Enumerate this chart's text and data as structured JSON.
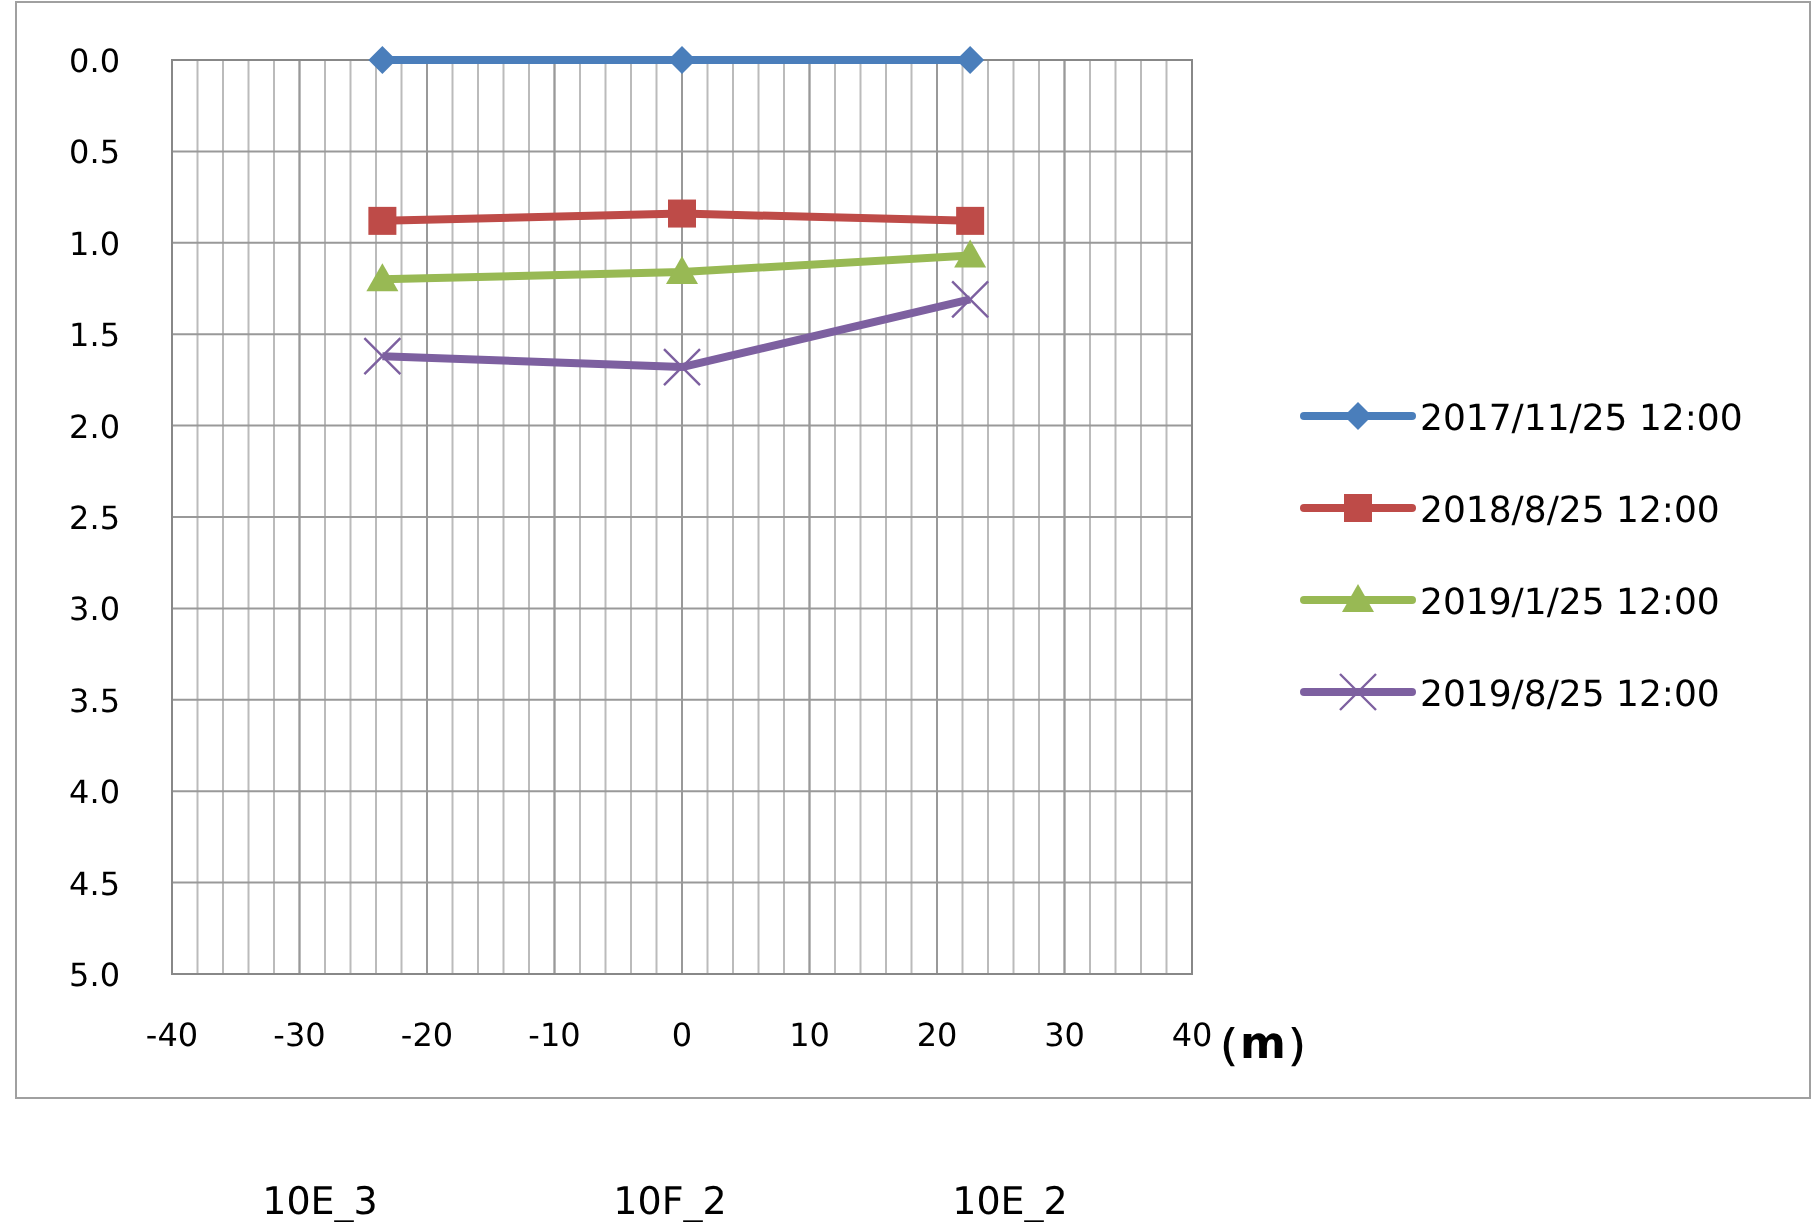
{
  "chart_data": {
    "type": "line",
    "xlabel": "（m）",
    "xlim": [
      -40,
      40
    ],
    "xticks": [
      -40,
      -30,
      -20,
      -10,
      0,
      10,
      20,
      30,
      40
    ],
    "ylim": [
      5,
      0
    ],
    "yticks": [
      {
        "value": 0,
        "label": "0.0"
      },
      {
        "value": 0.5,
        "label": "0.5"
      },
      {
        "value": 1,
        "label": "1.0"
      },
      {
        "value": 1.5,
        "label": "1.5"
      },
      {
        "value": 2,
        "label": "2.0"
      },
      {
        "value": 2.5,
        "label": "2.5"
      },
      {
        "value": 3,
        "label": "3.0"
      },
      {
        "value": 3.5,
        "label": "3.5"
      },
      {
        "value": 4,
        "label": "4.0"
      },
      {
        "value": 4.5,
        "label": "4.5"
      },
      {
        "value": 5,
        "label": "5.0"
      }
    ],
    "x": [
      -23.5,
      0,
      22.6
    ],
    "series": [
      {
        "name": "2017/11/25 12:00",
        "color": "#4a7ebb",
        "marker": "diamond",
        "values": [
          0,
          0,
          0
        ]
      },
      {
        "name": "2018/8/25 12:00",
        "color": "#be4b48",
        "marker": "square",
        "values": [
          0.88,
          0.84,
          0.88
        ]
      },
      {
        "name": "2019/1/25 12:00",
        "color": "#98b954",
        "marker": "triangle",
        "values": [
          1.2,
          1.16,
          1.07
        ]
      },
      {
        "name": "2019/8/25 12:00",
        "color": "#7d60a0",
        "marker": "cross",
        "values": [
          1.62,
          1.68,
          1.31
        ]
      }
    ],
    "grid": true,
    "legend": "right",
    "line_style": "solid",
    "annotations": [
      "10E_3",
      "10F_2",
      "10E_2"
    ]
  }
}
